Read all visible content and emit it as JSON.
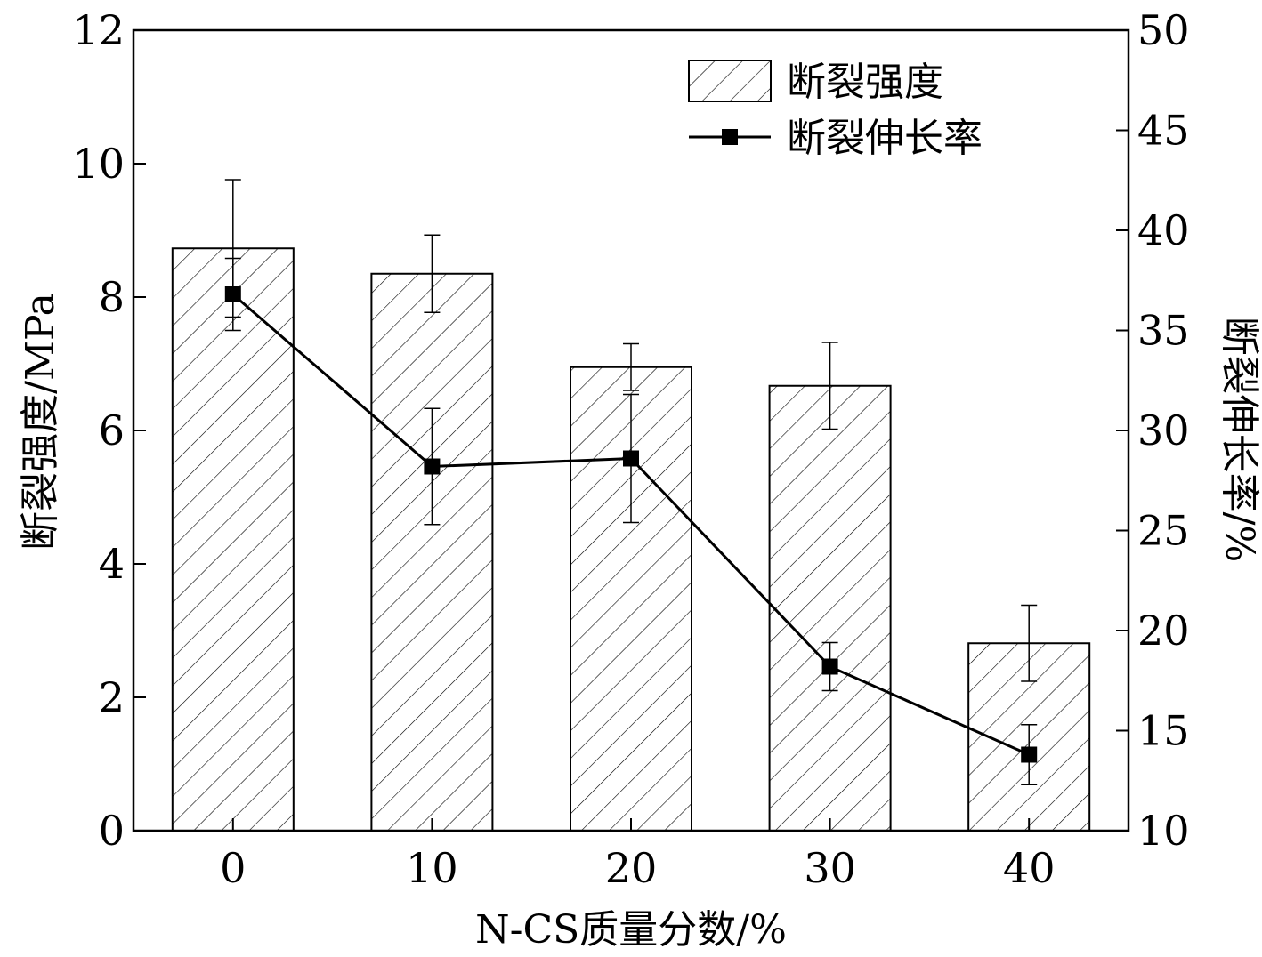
{
  "chart_data": {
    "type": "bar",
    "categories": [
      "0",
      "10",
      "20",
      "30",
      "40"
    ],
    "xlabel": "N-CS质量分数/%",
    "ylabel": "断裂强度/MPa",
    "y2label": "断裂伸长率/%",
    "ylim": [
      0,
      12
    ],
    "y2lim": [
      10,
      50
    ],
    "yticks": [
      "0",
      "2",
      "4",
      "6",
      "8",
      "10",
      "12"
    ],
    "y2ticks": [
      "10",
      "15",
      "20",
      "25",
      "30",
      "35",
      "40",
      "45",
      "50"
    ],
    "legend_position": "top-right",
    "series": [
      {
        "name": "断裂强度",
        "kind": "bar",
        "axis": "left",
        "pattern": "hatched",
        "values": [
          8.73,
          8.35,
          6.95,
          6.67,
          2.81
        ],
        "errors": [
          1.03,
          0.58,
          0.35,
          0.65,
          0.57
        ]
      },
      {
        "name": "断裂伸长率",
        "kind": "line",
        "axis": "right",
        "marker": "square",
        "values": [
          36.8,
          28.2,
          28.6,
          18.2,
          13.8
        ],
        "errors": [
          1.8,
          2.9,
          3.2,
          1.2,
          1.5
        ]
      }
    ]
  }
}
